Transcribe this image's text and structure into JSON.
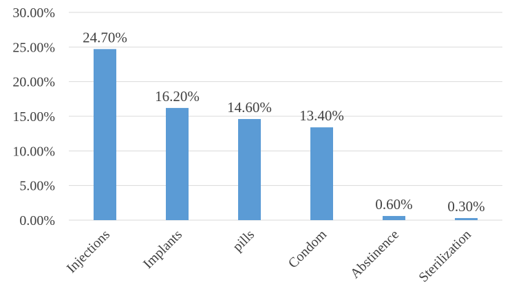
{
  "chart_data": {
    "type": "bar",
    "title": "",
    "xlabel": "",
    "ylabel": "",
    "categories": [
      "Injections",
      "Implants",
      "pills",
      "Condom",
      "Abstinence",
      "Sterilization"
    ],
    "values": [
      24.7,
      16.2,
      14.6,
      13.4,
      0.6,
      0.3
    ],
    "data_labels": [
      "24.70%",
      "16.20%",
      "14.60%",
      "13.40%",
      "0.60%",
      "0.30%"
    ],
    "ylim": [
      0,
      30
    ],
    "y_ticks": [
      0,
      5,
      10,
      15,
      20,
      25,
      30
    ],
    "y_tick_labels": [
      "0.00%",
      "5.00%",
      "10.00%",
      "15.00%",
      "20.00%",
      "25.00%",
      "30.00%"
    ],
    "bar_color": "#5b9bd5",
    "grid": true,
    "legend": "none"
  }
}
